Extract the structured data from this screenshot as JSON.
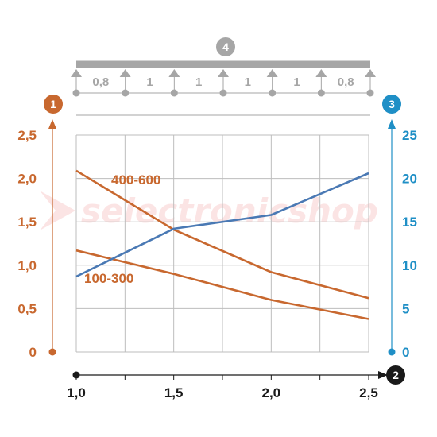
{
  "watermark": "selectronicshop",
  "badges": {
    "left_axis": "1",
    "right_axis": "3",
    "x_axis": "2",
    "beam": "4"
  },
  "colors": {
    "orange": "#c8682f",
    "blue": "#1f8fc6",
    "blue_line": "#4a79b4",
    "grey": "#999999",
    "grid": "#bdbdbd",
    "black": "#1a1a1a"
  },
  "beam": {
    "spans": [
      "0,8",
      "1",
      "1",
      "1",
      "1",
      "0,8"
    ],
    "supports": 7
  },
  "chart_data": {
    "type": "line",
    "x_ticks": [
      "1,0",
      "1,5",
      "2,0",
      "2,5"
    ],
    "x_tick_values": [
      1.0,
      1.5,
      2.0,
      2.5
    ],
    "xlim": [
      1.0,
      2.5
    ],
    "y_left_ticks": [
      "0",
      "0,5",
      "1,0",
      "1,5",
      "2,0",
      "2,5"
    ],
    "y_left_tick_values": [
      0,
      0.5,
      1.0,
      1.5,
      2.0,
      2.5
    ],
    "ylim_left": [
      0,
      2.5
    ],
    "y_right_ticks": [
      "0",
      "5",
      "10",
      "15",
      "20",
      "25"
    ],
    "y_right_tick_values": [
      0,
      5,
      10,
      15,
      20,
      25
    ],
    "ylim_right": [
      0,
      25
    ],
    "grid": true,
    "series": [
      {
        "name": "400-600",
        "axis": "left",
        "color": "#c8682f",
        "x": [
          1.0,
          1.5,
          2.0,
          2.5
        ],
        "y": [
          2.09,
          1.41,
          0.92,
          0.62
        ]
      },
      {
        "name": "100-300",
        "axis": "left",
        "color": "#c8682f",
        "x": [
          1.0,
          1.5,
          2.0,
          2.5
        ],
        "y": [
          1.17,
          0.9,
          0.6,
          0.38
        ]
      },
      {
        "name": "",
        "axis": "right",
        "color": "#4a79b4",
        "x": [
          1.0,
          1.5,
          2.0,
          2.5
        ],
        "y": [
          8.7,
          14.2,
          15.8,
          20.6
        ]
      }
    ]
  }
}
